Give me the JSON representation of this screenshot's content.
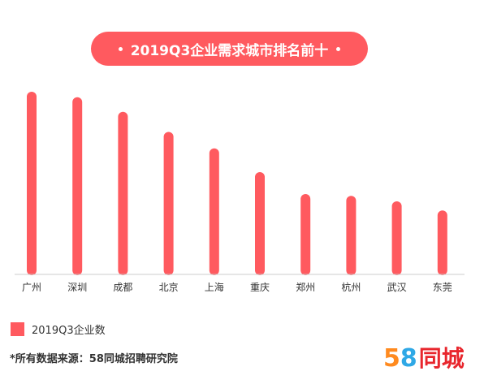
{
  "title": "2019Q3企业需求城市排名前十",
  "legend": {
    "label": "2019Q3企业数",
    "color": "#ff5a5f"
  },
  "source": "*所有数据来源：58同城招聘研究院",
  "logo": {
    "five": "5",
    "eight": "8",
    "text": "同城"
  },
  "colors": {
    "bar": "#ff5a5f",
    "axis": "#cccccc",
    "label": "#333333"
  },
  "chart_data": {
    "type": "bar",
    "categories": [
      "广州",
      "深圳",
      "成都",
      "北京",
      "上海",
      "重庆",
      "郑州",
      "杭州",
      "武汉",
      "东莞"
    ],
    "series": [
      {
        "name": "2019Q3企业数",
        "values": [
          100,
          97,
          89,
          78,
          69,
          56,
          44,
          43,
          40,
          35
        ]
      }
    ],
    "title": "2019Q3企业需求城市排名前十",
    "xlabel": "",
    "ylabel": "",
    "ylim": [
      0,
      100
    ],
    "grid": false,
    "legend_position": "bottom-left"
  }
}
